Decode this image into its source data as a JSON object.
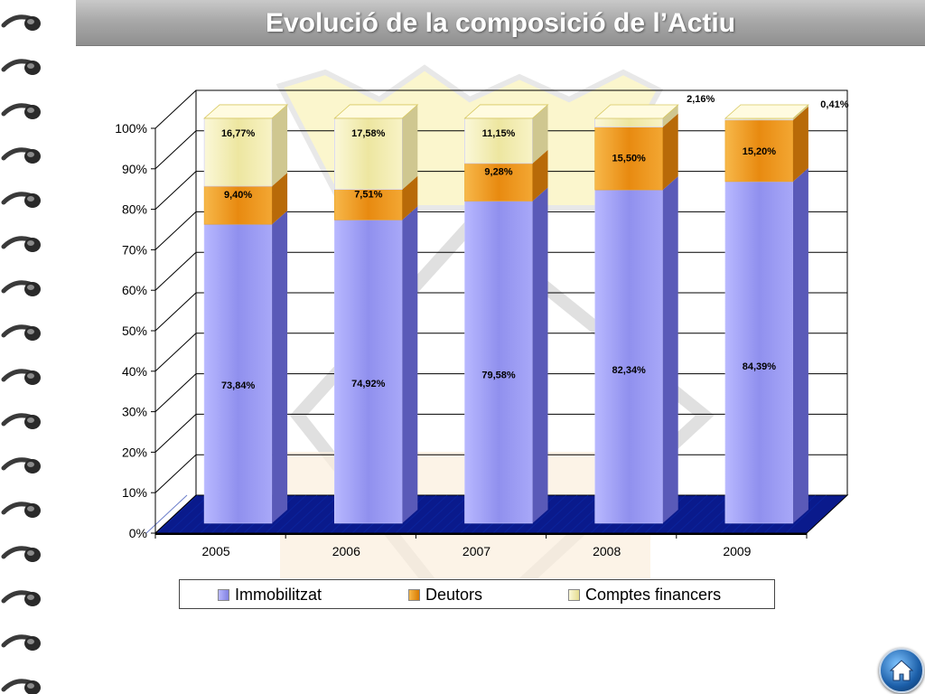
{
  "slide": {
    "title": "Evolució de la composició de l’Actiu"
  },
  "chart_data": {
    "type": "bar",
    "stacked": true,
    "three_d": true,
    "categories": [
      "2005",
      "2006",
      "2007",
      "2008",
      "2009"
    ],
    "series": [
      {
        "name": "Immobilitzat",
        "values": [
          73.84,
          74.92,
          79.58,
          82.34,
          84.39
        ],
        "labels": [
          "73,84%",
          "74,92%",
          "79,58%",
          "82,34%",
          "84,39%"
        ],
        "color": "#9c9cf0"
      },
      {
        "name": "Deutors",
        "values": [
          9.4,
          7.51,
          9.28,
          15.5,
          15.2
        ],
        "labels": [
          "9,40%",
          "7,51%",
          "9,28%",
          "15,50%",
          "15,20%"
        ],
        "color": "#f0a020"
      },
      {
        "name": "Comptes financers",
        "values": [
          16.77,
          17.58,
          11.15,
          2.16,
          0.41
        ],
        "labels": [
          "16,77%",
          "17,58%",
          "11,15%",
          "2,16%",
          "0,41%"
        ],
        "color": "#f5f0b8"
      }
    ],
    "y_ticks": [
      "0%",
      "10%",
      "20%",
      "30%",
      "40%",
      "50%",
      "60%",
      "70%",
      "80%",
      "90%",
      "100%"
    ],
    "ylim": [
      0,
      100
    ],
    "grid": true,
    "floor_color": "#0a1a8c",
    "legend_position": "bottom"
  },
  "home_button": {
    "icon": "home-icon"
  }
}
